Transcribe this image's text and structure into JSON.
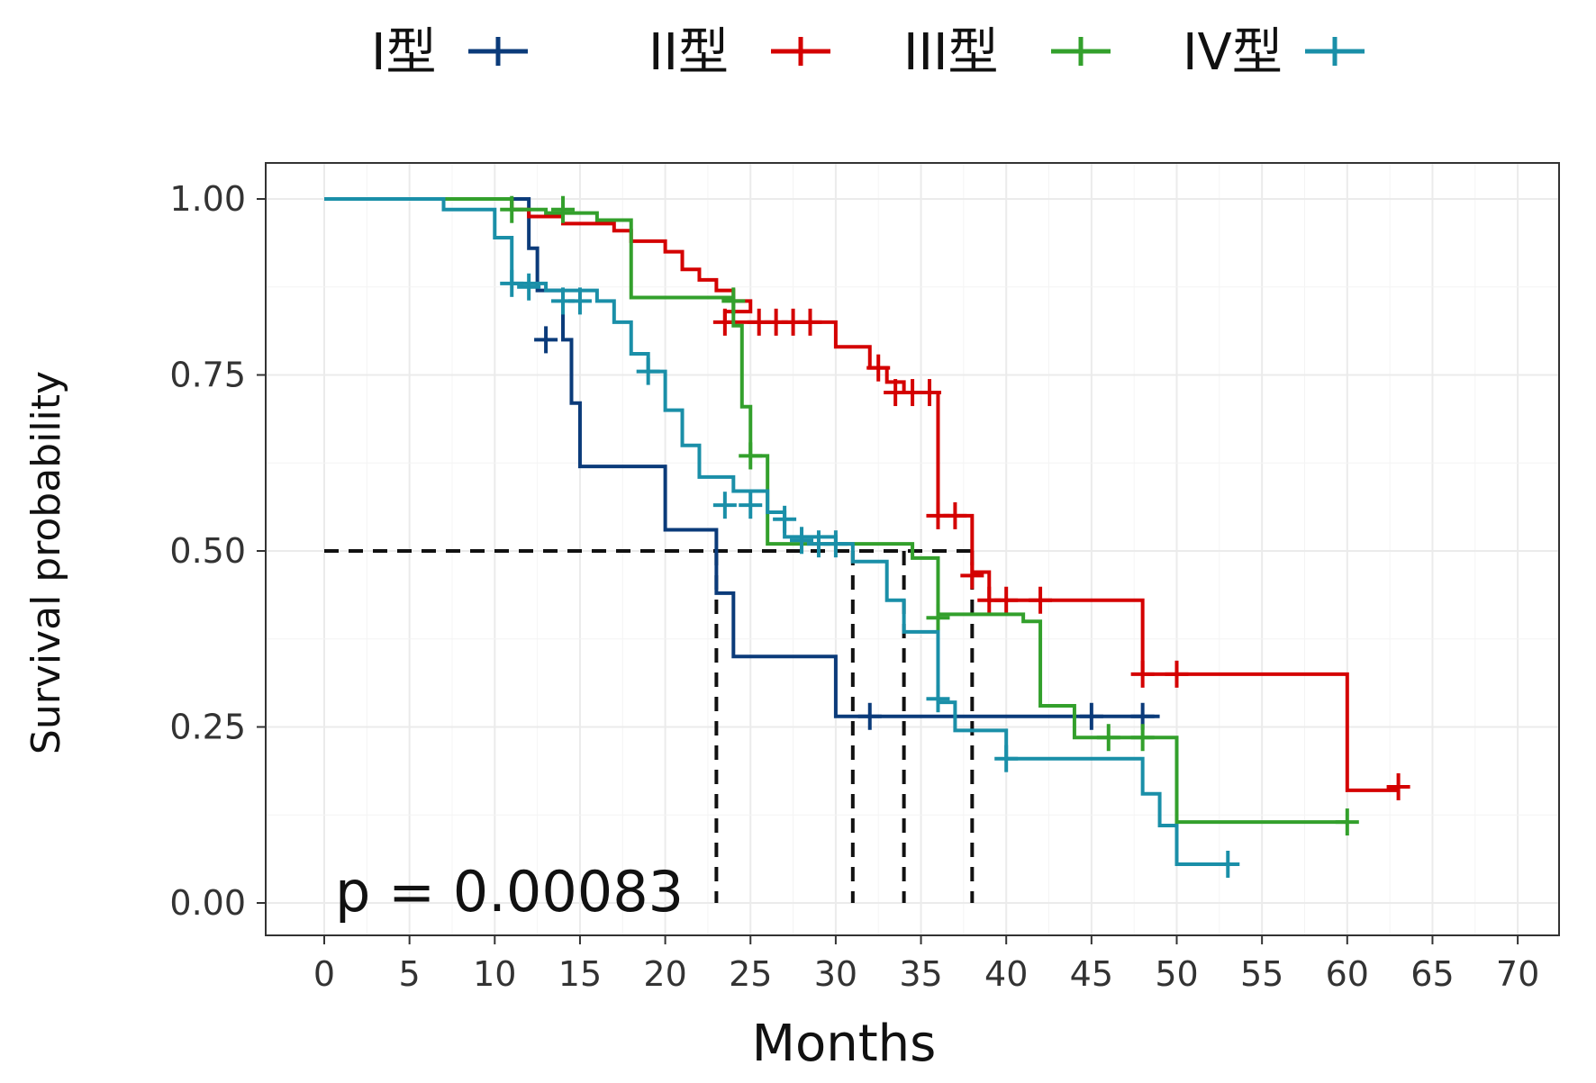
{
  "chart_data": {
    "type": "line",
    "subtype": "kaplan-meier",
    "title": "",
    "xlabel": "Months",
    "ylabel": "Survival probability",
    "xlim": [
      0,
      72
    ],
    "ylim": [
      0,
      1.05
    ],
    "x_ticks": [
      0,
      5,
      10,
      15,
      20,
      25,
      30,
      35,
      40,
      45,
      50,
      55,
      60,
      65,
      70
    ],
    "y_ticks": [
      0.0,
      0.25,
      0.5,
      0.75,
      1.0
    ],
    "x_tick_labels": [
      "0",
      "5",
      "10",
      "15",
      "20",
      "25",
      "30",
      "35",
      "40",
      "45",
      "50",
      "55",
      "60",
      "65",
      "70"
    ],
    "y_tick_labels": [
      "0.00",
      "0.25",
      "0.50",
      "0.75",
      "1.00"
    ],
    "grid": true,
    "legend_position": "top",
    "annotation": "p = 0.00083",
    "median_line": {
      "y": 0.5,
      "x_values": [
        23,
        31,
        34,
        38
      ]
    },
    "series": [
      {
        "name": "I型",
        "color": "#0b3b7a",
        "steps": [
          [
            0,
            1.0
          ],
          [
            12,
            0.93
          ],
          [
            12.5,
            0.87
          ],
          [
            14,
            0.8
          ],
          [
            14.5,
            0.71
          ],
          [
            15,
            0.62
          ],
          [
            20,
            0.53
          ],
          [
            23,
            0.44
          ],
          [
            24,
            0.35
          ],
          [
            30,
            0.265
          ],
          [
            49,
            0.265
          ]
        ],
        "censors": [
          [
            13,
            0.8
          ],
          [
            32,
            0.265
          ],
          [
            45,
            0.265
          ],
          [
            48,
            0.265
          ]
        ]
      },
      {
        "name": "II型",
        "color": "#d40000",
        "steps": [
          [
            0,
            1.0
          ],
          [
            11,
            0.985
          ],
          [
            12,
            0.975
          ],
          [
            14,
            0.965
          ],
          [
            17,
            0.955
          ],
          [
            18,
            0.94
          ],
          [
            20,
            0.925
          ],
          [
            21,
            0.9
          ],
          [
            22,
            0.885
          ],
          [
            23,
            0.87
          ],
          [
            24,
            0.855
          ],
          [
            25,
            0.84
          ],
          [
            23.5,
            0.825
          ],
          [
            30,
            0.79
          ],
          [
            32,
            0.76
          ],
          [
            33,
            0.74
          ],
          [
            34,
            0.725
          ],
          [
            36,
            0.55
          ],
          [
            38,
            0.47
          ],
          [
            39,
            0.43
          ],
          [
            48,
            0.325
          ],
          [
            60,
            0.16
          ],
          [
            63,
            0.16
          ]
        ],
        "censors": [
          [
            23.5,
            0.825
          ],
          [
            25.5,
            0.825
          ],
          [
            26.5,
            0.825
          ],
          [
            27.5,
            0.825
          ],
          [
            28.5,
            0.825
          ],
          [
            32.5,
            0.76
          ],
          [
            33.5,
            0.725
          ],
          [
            34.5,
            0.725
          ],
          [
            35.5,
            0.725
          ],
          [
            36,
            0.55
          ],
          [
            37,
            0.55
          ],
          [
            38,
            0.465
          ],
          [
            39,
            0.43
          ],
          [
            40,
            0.43
          ],
          [
            42,
            0.43
          ],
          [
            48,
            0.325
          ],
          [
            50,
            0.325
          ],
          [
            63,
            0.165
          ]
        ]
      },
      {
        "name": "III型",
        "color": "#33a02c",
        "steps": [
          [
            0,
            1.0
          ],
          [
            11,
            0.985
          ],
          [
            13,
            0.98
          ],
          [
            16,
            0.97
          ],
          [
            18,
            0.86
          ],
          [
            24,
            0.855
          ],
          [
            24,
            0.82
          ],
          [
            24.5,
            0.705
          ],
          [
            25,
            0.635
          ],
          [
            26,
            0.51
          ],
          [
            27.5,
            0.51
          ],
          [
            34,
            0.51
          ],
          [
            34.5,
            0.49
          ],
          [
            36,
            0.41
          ],
          [
            41,
            0.4
          ],
          [
            42,
            0.28
          ],
          [
            44,
            0.235
          ],
          [
            47,
            0.235
          ],
          [
            50,
            0.115
          ],
          [
            60,
            0.115
          ]
        ],
        "censors": [
          [
            11,
            0.985
          ],
          [
            14,
            0.985
          ],
          [
            24,
            0.855
          ],
          [
            25,
            0.635
          ],
          [
            36,
            0.405
          ],
          [
            46,
            0.235
          ],
          [
            48,
            0.235
          ],
          [
            60,
            0.115
          ]
        ]
      },
      {
        "name": "IV型",
        "color": "#1a8fa8",
        "steps": [
          [
            0,
            1.0
          ],
          [
            7,
            0.985
          ],
          [
            10,
            0.945
          ],
          [
            11,
            0.88
          ],
          [
            13,
            0.87
          ],
          [
            16,
            0.855
          ],
          [
            17,
            0.825
          ],
          [
            18,
            0.78
          ],
          [
            19,
            0.755
          ],
          [
            20,
            0.7
          ],
          [
            21,
            0.65
          ],
          [
            22,
            0.605
          ],
          [
            24,
            0.585
          ],
          [
            26,
            0.555
          ],
          [
            27,
            0.52
          ],
          [
            30,
            0.51
          ],
          [
            31,
            0.485
          ],
          [
            33,
            0.43
          ],
          [
            34,
            0.385
          ],
          [
            35,
            0.385
          ],
          [
            36,
            0.285
          ],
          [
            37,
            0.245
          ],
          [
            40,
            0.205
          ],
          [
            48,
            0.155
          ],
          [
            49,
            0.11
          ],
          [
            50,
            0.055
          ],
          [
            53,
            0.055
          ]
        ],
        "censors": [
          [
            11,
            0.88
          ],
          [
            12,
            0.875
          ],
          [
            14,
            0.855
          ],
          [
            15,
            0.855
          ],
          [
            19,
            0.755
          ],
          [
            23.5,
            0.565
          ],
          [
            25,
            0.565
          ],
          [
            27,
            0.545
          ],
          [
            28,
            0.515
          ],
          [
            29,
            0.51
          ],
          [
            30,
            0.51
          ],
          [
            36,
            0.29
          ],
          [
            40,
            0.205
          ],
          [
            53,
            0.055
          ]
        ]
      }
    ]
  }
}
